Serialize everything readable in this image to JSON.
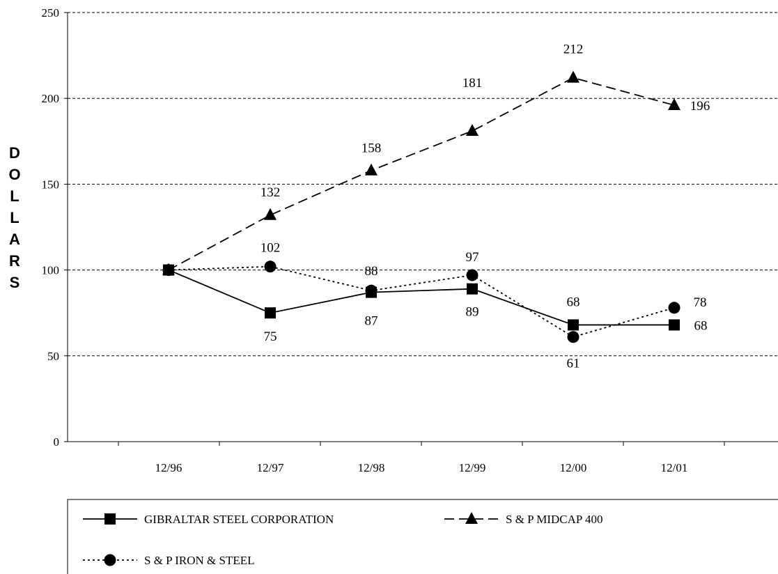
{
  "chart_data": {
    "type": "line",
    "title": "",
    "xlabel": "",
    "ylabel": "DOLLARS",
    "categories": [
      "12/96",
      "12/97",
      "12/98",
      "12/99",
      "12/00",
      "12/01"
    ],
    "ylim": [
      0,
      250
    ],
    "yticks": [
      0,
      50,
      100,
      150,
      200,
      250
    ],
    "grid": "horizontal dashed",
    "legend_position": "bottom",
    "series": [
      {
        "name": "GIBRALTAR STEEL CORPORATION",
        "values": [
          100,
          75,
          87,
          89,
          68,
          68
        ],
        "labels": [
          "",
          "75",
          "87",
          "89",
          "68",
          "68"
        ],
        "style": "solid",
        "marker": "square",
        "color": "#000000"
      },
      {
        "name": "S & P MIDCAP 400",
        "values": [
          100,
          132,
          158,
          181,
          212,
          196
        ],
        "labels": [
          "",
          "132",
          "158",
          "181",
          "212",
          "196"
        ],
        "style": "dashed",
        "marker": "triangle",
        "color": "#000000"
      },
      {
        "name": "S & P IRON & STEEL",
        "values": [
          100,
          102,
          88,
          97,
          61,
          78
        ],
        "labels": [
          "",
          "102",
          "88",
          "97",
          "61",
          "78"
        ],
        "style": "dotted",
        "marker": "circle",
        "color": "#000000"
      }
    ]
  }
}
